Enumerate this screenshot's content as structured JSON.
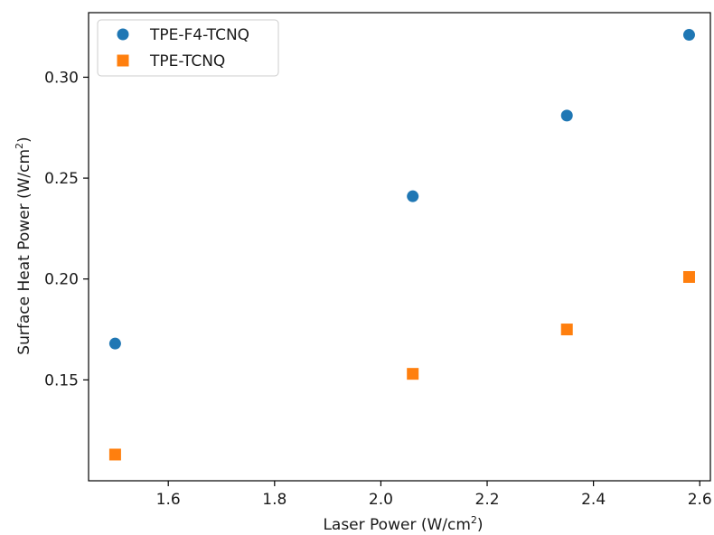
{
  "chart_data": {
    "type": "scatter",
    "title": "",
    "xlabel": "Laser Power (W/cm",
    "xlabel_sup": "2",
    "xlabel_close": ")",
    "ylabel": "Surface Heat Power (W/cm",
    "ylabel_sup": "2",
    "ylabel_close": ")",
    "xlim": [
      1.45,
      2.62
    ],
    "ylim": [
      0.1,
      0.332
    ],
    "x_ticks": [
      1.6,
      1.8,
      2.0,
      2.2,
      2.4,
      2.6
    ],
    "x_tick_labels": [
      "1.6",
      "1.8",
      "2.0",
      "2.2",
      "2.4",
      "2.6"
    ],
    "y_ticks": [
      0.15,
      0.2,
      0.25,
      0.3
    ],
    "y_tick_labels": [
      "0.15",
      "0.20",
      "0.25",
      "0.30"
    ],
    "grid": false,
    "legend_position": "top-left",
    "series": [
      {
        "name": "TPE-F4-TCNQ",
        "marker": "circle",
        "color": "#1f77b4",
        "x": [
          1.5,
          2.06,
          2.35,
          2.58
        ],
        "y": [
          0.168,
          0.241,
          0.281,
          0.321
        ]
      },
      {
        "name": "TPE-TCNQ",
        "marker": "square",
        "color": "#ff7f0e",
        "x": [
          1.5,
          2.06,
          2.35,
          2.58
        ],
        "y": [
          0.113,
          0.153,
          0.175,
          0.201
        ]
      }
    ]
  }
}
